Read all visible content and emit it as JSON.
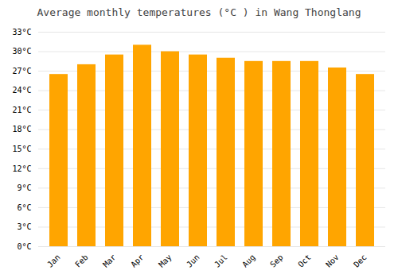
{
  "chart_data": {
    "type": "bar",
    "title": "Average monthly temperatures (°C ) in Wang Thonglang",
    "categories": [
      "Jan",
      "Feb",
      "Mar",
      "Apr",
      "May",
      "Jun",
      "Jul",
      "Aug",
      "Sep",
      "Oct",
      "Nov",
      "Dec"
    ],
    "values": [
      26.5,
      28.0,
      29.5,
      31.0,
      30.0,
      29.5,
      29.0,
      28.5,
      28.5,
      28.5,
      27.5,
      26.5
    ],
    "color": "#FFA500",
    "ylim": [
      0,
      33
    ],
    "yticks": [
      {
        "value": 0,
        "label": "0°C"
      },
      {
        "value": 3,
        "label": "3°C"
      },
      {
        "value": 6,
        "label": "6°C"
      },
      {
        "value": 9,
        "label": "9°C"
      },
      {
        "value": 12,
        "label": "12°C"
      },
      {
        "value": 15,
        "label": "15°C"
      },
      {
        "value": 18,
        "label": "18°C"
      },
      {
        "value": 21,
        "label": "21°C"
      },
      {
        "value": 24,
        "label": "24°C"
      },
      {
        "value": 27,
        "label": "27°C"
      },
      {
        "value": 30,
        "label": "30°C"
      },
      {
        "value": 33,
        "label": "33°C"
      }
    ],
    "grid": true
  }
}
